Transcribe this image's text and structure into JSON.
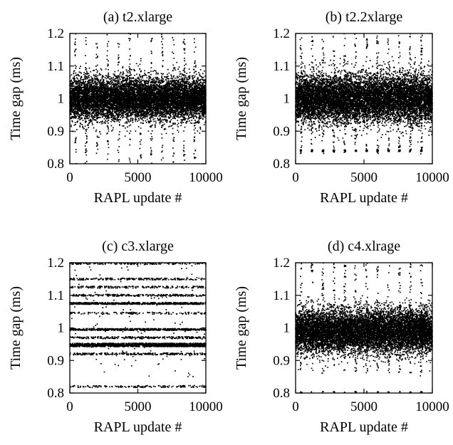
{
  "chart_data": [
    {
      "type": "scatter",
      "title": "(a) t2.xlarge",
      "xlabel": "RAPL update #",
      "ylabel": "Time gap (ms)",
      "xlim": [
        0,
        10000
      ],
      "ylim": [
        0.8,
        1.2
      ],
      "xticks": [
        "0",
        "5000",
        "10000"
      ],
      "yticks": [
        "0.8",
        "0.9",
        "1",
        "1.1",
        "1.2"
      ],
      "grid": false,
      "n_points": 10000,
      "pattern": "dense band centered at 1.00 ms (about 0.93-1.07), sparse points spanning 0.80-1.20 with periodic vertical streaks every ~800 updates",
      "band": {
        "center": 1.0,
        "spread": 0.032
      },
      "outlier_fraction": 0.05,
      "streak_period": 800,
      "streak_range": [
        0.8,
        1.2
      ],
      "levels": [],
      "level_points": []
    },
    {
      "type": "scatter",
      "title": "(b) t2.2xlarge",
      "xlabel": "RAPL update #",
      "ylabel": "Time gap (ms)",
      "xlim": [
        0,
        10000
      ],
      "ylim": [
        0.8,
        1.2
      ],
      "xticks": [
        "0",
        "5000",
        "10000"
      ],
      "yticks": [
        "0.8",
        "0.9",
        "1",
        "1.1",
        "1.2"
      ],
      "grid": false,
      "n_points": 10000,
      "pattern": "dense band centered at 1.00 ms (about 0.91-1.08), periodic streaks with clusters near 0.83-0.85 ms",
      "band": {
        "center": 1.0,
        "spread": 0.037
      },
      "outlier_fraction": 0.05,
      "streak_period": 800,
      "streak_range": [
        0.83,
        1.2
      ],
      "levels": [
        0.84
      ],
      "level_points": [
        180
      ]
    },
    {
      "type": "scatter",
      "title": "(c) c3.xlarge",
      "xlabel": "RAPL update #",
      "ylabel": "Time gap (ms)",
      "xlim": [
        0,
        10000
      ],
      "ylim": [
        0.8,
        1.2
      ],
      "xticks": [
        "0",
        "5000",
        "10000"
      ],
      "yticks": [
        "0.8",
        "0.9",
        "1",
        "1.1",
        "1.2"
      ],
      "grid": false,
      "n_points": 6000,
      "pattern": "discrete horizontal levels",
      "band": null,
      "outlier_fraction": 0.02,
      "streak_period": 0,
      "streak_range": [
        0.85,
        1.2
      ],
      "levels": [
        0.82,
        0.92,
        0.945,
        0.95,
        0.97,
        0.995,
        1.045,
        1.075,
        1.1,
        1.125,
        1.15,
        1.198
      ],
      "level_points": [
        160,
        260,
        700,
        700,
        260,
        650,
        140,
        650,
        260,
        200,
        200,
        180
      ]
    },
    {
      "type": "scatter",
      "title": "(d) c4.xlrage",
      "xlabel": "RAPL update #",
      "ylabel": "Time gap (ms)",
      "xlim": [
        0,
        10000
      ],
      "ylim": [
        0.8,
        1.2
      ],
      "xticks": [
        "0",
        "5000",
        "10000"
      ],
      "yticks": [
        "0.8",
        "0.9",
        "1",
        "1.1",
        "1.2"
      ],
      "grid": false,
      "n_points": 10000,
      "pattern": "dense band centered at ~0.99 ms (about 0.92-1.05), periodic streaks, row of points at 0.80 ms",
      "band": {
        "center": 0.99,
        "spread": 0.033
      },
      "outlier_fraction": 0.05,
      "streak_period": 800,
      "streak_range": [
        0.86,
        1.2
      ],
      "levels": [
        0.802
      ],
      "level_points": [
        60
      ]
    }
  ]
}
